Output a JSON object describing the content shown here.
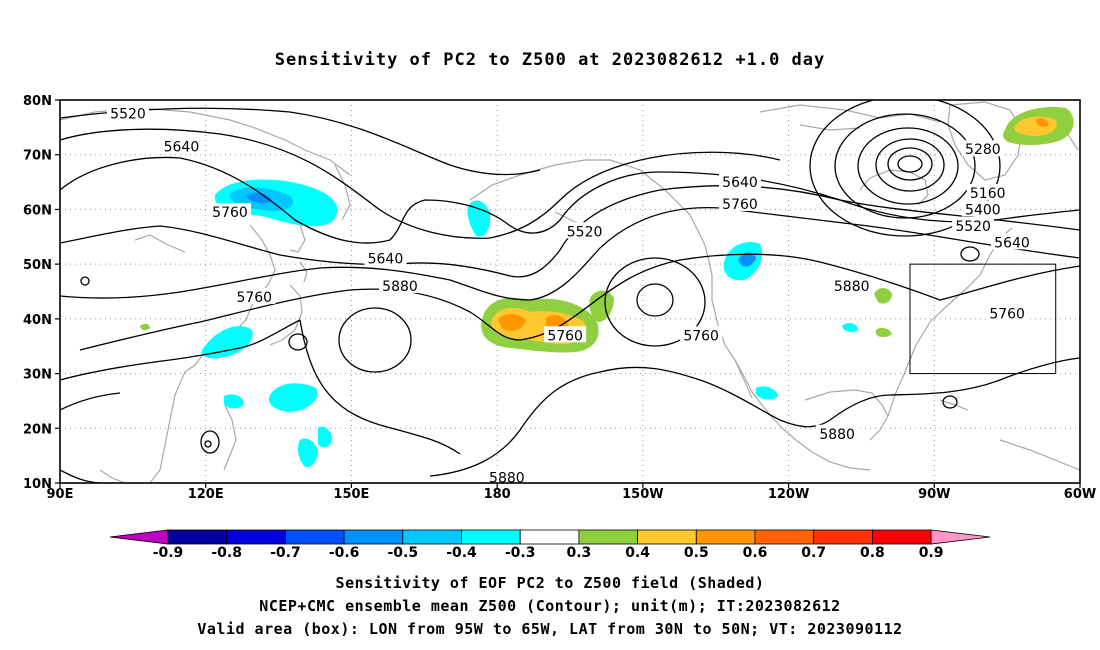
{
  "title": "Sensitivity of PC2 to Z500 at 2023082612 +1.0 day",
  "map": {
    "lon_range_deg_east": [
      90,
      300
    ],
    "lat_range_deg_north": [
      10,
      80
    ],
    "lat_ticks": [
      "80N",
      "70N",
      "60N",
      "50N",
      "40N",
      "30N",
      "20N",
      "10N"
    ],
    "lon_ticks": [
      "90E",
      "120E",
      "150E",
      "180",
      "150W",
      "120W",
      "90W",
      "60W"
    ],
    "gridlines": "dotted",
    "coastlines": "gray",
    "valid_area_box": {
      "lon_west_deg": -95,
      "lon_east_deg": -65,
      "lat_south_deg": 30,
      "lat_north_deg": 50
    },
    "contour_labels": [
      {
        "text": "5520",
        "lon": 104,
        "lat": 77.5
      },
      {
        "text": "5640",
        "lon": 115,
        "lat": 71.5
      },
      {
        "text": "5760",
        "lon": 125,
        "lat": 59.5
      },
      {
        "text": "5640",
        "lon": 157,
        "lat": 51
      },
      {
        "text": "5760",
        "lon": 130,
        "lat": 44
      },
      {
        "text": "5880",
        "lon": 160,
        "lat": 46
      },
      {
        "text": "5520",
        "lon": 198,
        "lat": 56
      },
      {
        "text": "5760",
        "lon": 194,
        "lat": 37
      },
      {
        "text": "5640",
        "lon": 230,
        "lat": 65
      },
      {
        "text": "5760",
        "lon": 230,
        "lat": 61
      },
      {
        "text": "5760",
        "lon": 222,
        "lat": 37
      },
      {
        "text": "5280",
        "lon": 280,
        "lat": 71
      },
      {
        "text": "5160",
        "lon": 281,
        "lat": 63
      },
      {
        "text": "5400",
        "lon": 280,
        "lat": 60
      },
      {
        "text": "5520",
        "lon": 278,
        "lat": 57
      },
      {
        "text": "5640",
        "lon": 286,
        "lat": 54
      },
      {
        "text": "5880",
        "lon": 253,
        "lat": 46
      },
      {
        "text": "5760",
        "lon": 285,
        "lat": 41
      },
      {
        "text": "5880",
        "lon": 250,
        "lat": 19
      },
      {
        "text": "5880",
        "lon": 182,
        "lat": 11
      }
    ]
  },
  "colorbar": {
    "labels": [
      "-0.9",
      "-0.8",
      "-0.7",
      "-0.6",
      "-0.5",
      "-0.4",
      "-0.3",
      "0.3",
      "0.4",
      "0.5",
      "0.6",
      "0.7",
      "0.8",
      "0.9"
    ],
    "colors": [
      "#c000c0",
      "#0000a0",
      "#0000e0",
      "#0050ff",
      "#0090ff",
      "#00c8ff",
      "#00ffff",
      "#ffffff",
      "#90d040",
      "#ffc830",
      "#ff9600",
      "#ff6400",
      "#ff3200",
      "#ff0000",
      "#ff96c8"
    ]
  },
  "captions": {
    "line1": "Sensitivity of EOF PC2 to Z500 field (Shaded)",
    "line2": "NCEP+CMC ensemble mean Z500 (Contour); unit(m); IT:2023082612",
    "line3": "Valid area (box): LON from 95W to 65W, LAT from 30N to 50N; VT: 2023090112"
  }
}
